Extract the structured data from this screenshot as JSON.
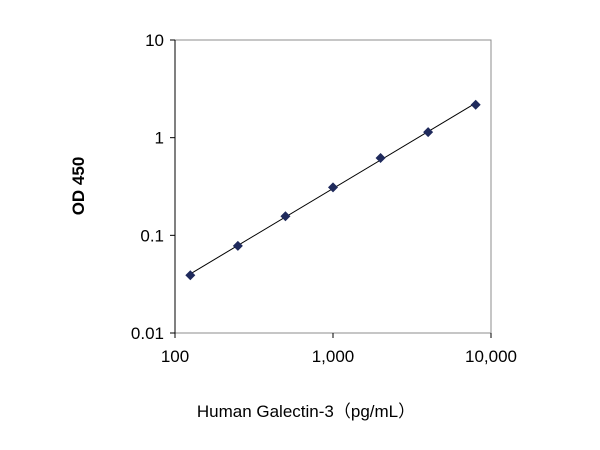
{
  "chart_data": {
    "type": "scatter",
    "title": "",
    "xlabel": "Human Galectin-3（pg/mL）",
    "ylabel": "OD 450",
    "x_scale": "log",
    "y_scale": "log",
    "xlim": [
      100,
      10000
    ],
    "ylim": [
      0.01,
      10
    ],
    "x_ticks": [
      100,
      1000,
      10000
    ],
    "x_tick_labels": [
      "100",
      "1,000",
      "10,000"
    ],
    "y_ticks": [
      10,
      1,
      0.1,
      0.01
    ],
    "y_tick_labels": [
      "10",
      "1",
      "0.1",
      "0.01"
    ],
    "grid": false,
    "legend": "none",
    "trendline": true,
    "marker_color": "#1f2a5c",
    "x": [
      125,
      250,
      500,
      1000,
      2000,
      4000,
      8000
    ],
    "y": [
      0.039,
      0.078,
      0.157,
      0.31,
      0.62,
      1.14,
      2.17
    ]
  }
}
